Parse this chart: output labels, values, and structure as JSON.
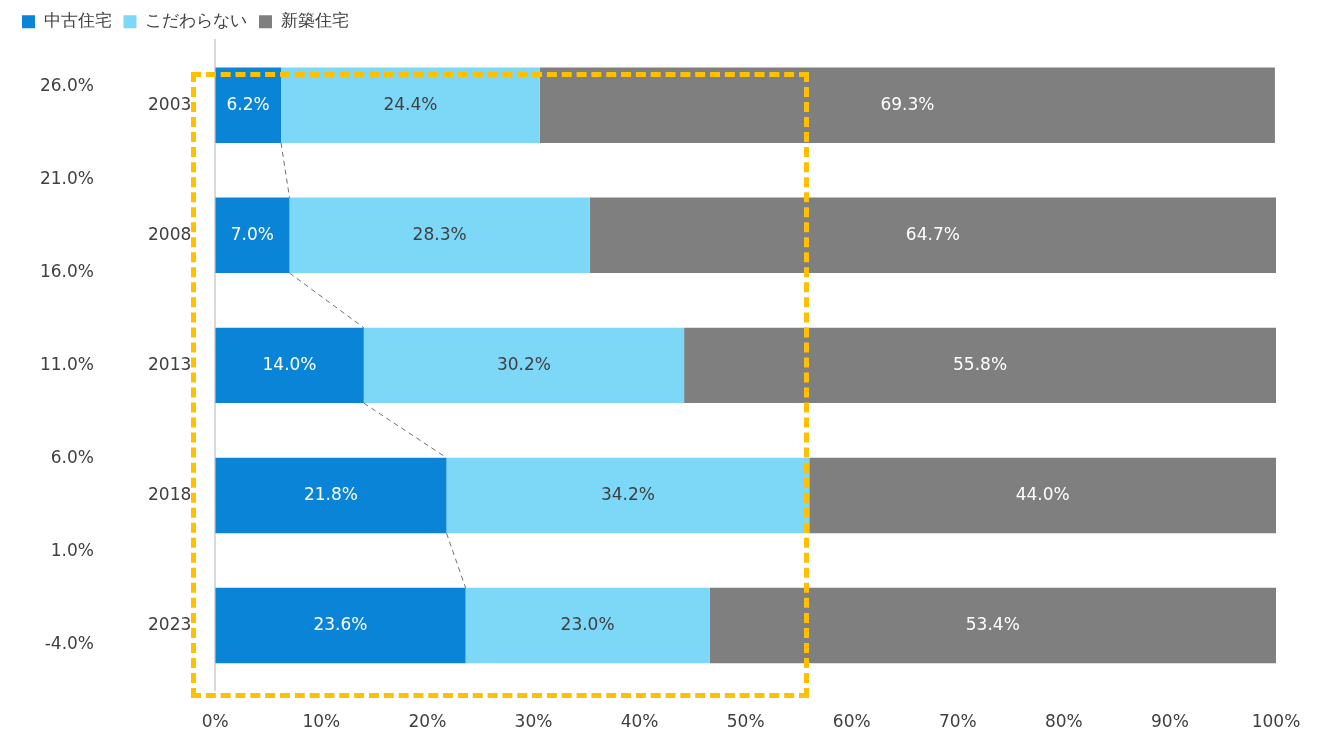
{
  "chart_data": {
    "type": "bar",
    "orientation": "horizontal",
    "stacked": true,
    "legend": "top left",
    "categories": [
      "2003",
      "2008",
      "2013",
      "2018",
      "2023"
    ],
    "series": [
      {
        "name": "中古住宅",
        "color": "#0a84d6",
        "values": [
          6.2,
          7.0,
          14.0,
          21.8,
          23.6
        ],
        "value_labels": [
          "6.2%",
          "7.0%",
          "14.0%",
          "21.8%",
          "23.6%"
        ]
      },
      {
        "name": "こだわらない",
        "color": "#7dd8f8",
        "values": [
          24.4,
          28.3,
          30.2,
          34.2,
          23.0
        ],
        "value_labels": [
          "24.4%",
          "28.3%",
          "30.2%",
          "34.2%",
          "23.0%"
        ]
      },
      {
        "name": "新築住宅",
        "color": "#7f7f7f",
        "values": [
          69.3,
          64.7,
          55.8,
          44.0,
          53.4
        ],
        "value_labels": [
          "69.3%",
          "64.7%",
          "55.8%",
          "44.0%",
          "53.4%"
        ]
      }
    ],
    "xlim": [
      0,
      100
    ],
    "xticks": [
      {
        "value": 0,
        "label": "0%"
      },
      {
        "value": 10,
        "label": "10%"
      },
      {
        "value": 20,
        "label": "20%"
      },
      {
        "value": 30,
        "label": "30%"
      },
      {
        "value": 40,
        "label": "40%"
      },
      {
        "value": 50,
        "label": "50%"
      },
      {
        "value": 60,
        "label": "60%"
      },
      {
        "value": 70,
        "label": "70%"
      },
      {
        "value": 80,
        "label": "80%"
      },
      {
        "value": 90,
        "label": "90%"
      },
      {
        "value": 100,
        "label": "100%"
      }
    ],
    "y2lim": [
      -4,
      26
    ],
    "y2ticks": [
      {
        "value": -4,
        "label": "-4.0%"
      },
      {
        "value": 1,
        "label": "1.0%"
      },
      {
        "value": 6,
        "label": "6.0%"
      },
      {
        "value": 11,
        "label": "11.0%"
      },
      {
        "value": 16,
        "label": "16.0%"
      },
      {
        "value": 21,
        "label": "21.0%"
      },
      {
        "value": 26,
        "label": "26.0%"
      }
    ],
    "grid": false
  }
}
